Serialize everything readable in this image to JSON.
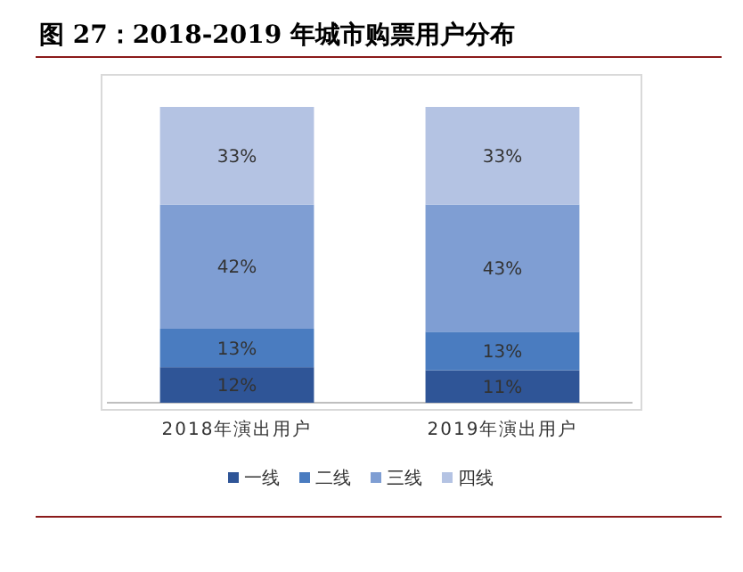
{
  "chart_data": {
    "type": "bar",
    "title": "图 27：2018-2019 年城市购票用户分布",
    "categories": [
      "2018年演出用户",
      "2019年演出用户"
    ],
    "stacked": true,
    "legend": "bottom",
    "series": [
      {
        "name": "一线",
        "color": "#2f5597",
        "values": [
          12,
          11
        ],
        "value_labels": [
          "12%",
          "11%"
        ]
      },
      {
        "name": "二线",
        "color": "#4a7cc0",
        "values": [
          13,
          13
        ],
        "value_labels": [
          "13%",
          "13%"
        ]
      },
      {
        "name": "三线",
        "color": "#7f9ed3",
        "values": [
          42,
          43
        ],
        "value_labels": [
          "42%",
          "43%"
        ]
      },
      {
        "name": "四线",
        "color": "#b4c3e3",
        "values": [
          33,
          33
        ],
        "value_labels": [
          "33%",
          "33%"
        ]
      }
    ]
  }
}
